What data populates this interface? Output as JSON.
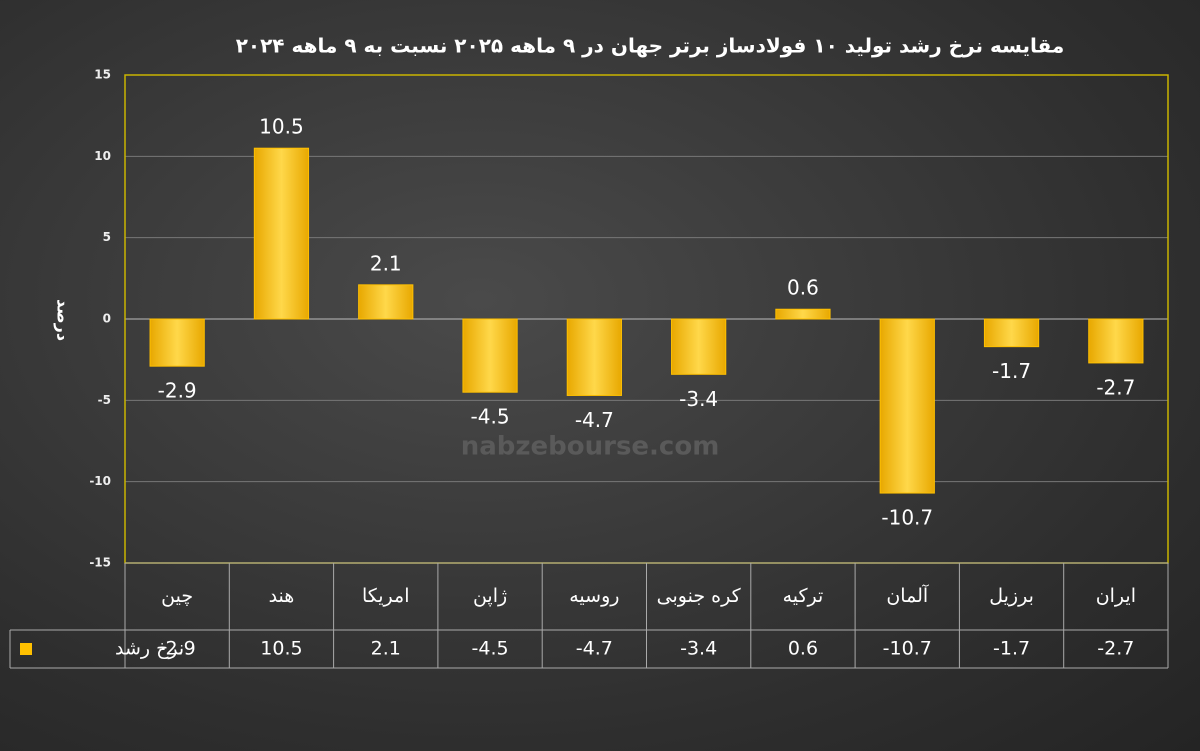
{
  "chart_data": {
    "type": "bar",
    "title": "مقایسه نرخ رشد تولید ۱۰ فولادساز برتر جهان در ۹ ماهه ۲۰۲۵ نسبت به ۹ ماهه ۲۰۲۴",
    "y_label": "درصد",
    "watermark": "nabzebourse.com",
    "categories": [
      "چین",
      "هند",
      "امریکا",
      "ژاپن",
      "روسیه",
      "کره جنوبی",
      "ترکیه",
      "آلمان",
      "برزیل",
      "ایران"
    ],
    "series": [
      {
        "name": "نرخ رشد",
        "color": "#ffc000",
        "values": [
          -2.9,
          10.5,
          2.1,
          -4.5,
          -4.7,
          -3.4,
          0.6,
          -10.7,
          -1.7,
          -2.7
        ]
      }
    ],
    "ylim": [
      -15,
      15
    ],
    "yticks": [
      -15,
      -10,
      -5,
      0,
      5,
      10,
      15
    ],
    "grid": true,
    "data_table": true
  }
}
